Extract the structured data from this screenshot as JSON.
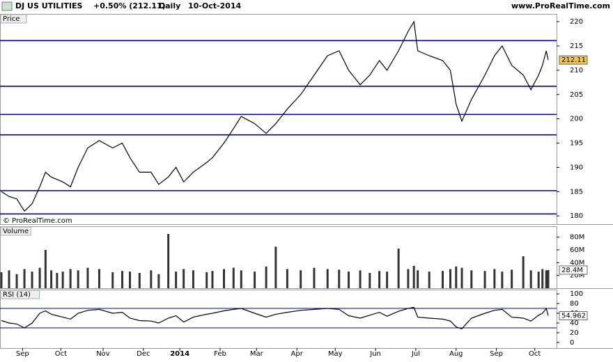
{
  "header": {
    "instrument": "DJ US UTILITIES",
    "change": "+0.50% (212.11)",
    "period": "Daily",
    "date": "10-Oct-2014",
    "source": "www.ProRealTime.com"
  },
  "chart_data": [
    {
      "type": "line",
      "title": "Price",
      "watermark": "© ProRealTime.com",
      "color": "#000000",
      "x": [
        0,
        4,
        8,
        12,
        16,
        20,
        23,
        26,
        29,
        32,
        36,
        40,
        45,
        51,
        58,
        63,
        67,
        72,
        78,
        82,
        87,
        91,
        95,
        100,
        107,
        110,
        116,
        121,
        125,
        132,
        138,
        143,
        149,
        156,
        163,
        170,
        176,
        181,
        187,
        192,
        197,
        201,
        207,
        212,
        215,
        217,
        223,
        230,
        234,
        237,
        240,
        245,
        252,
        257,
        261,
        266,
        272,
        276,
        280,
        282,
        284,
        285
      ],
      "values": [
        185,
        184,
        183.5,
        181,
        182.5,
        186,
        189,
        188,
        187.5,
        187,
        186,
        190,
        194,
        195.5,
        194,
        195,
        192,
        189,
        189,
        186.5,
        188,
        190,
        187,
        189,
        191,
        192,
        195,
        198,
        200.5,
        199,
        197,
        199,
        202,
        205,
        209,
        213,
        214,
        210,
        207,
        209,
        212,
        210,
        214,
        218,
        220,
        214,
        213,
        212,
        210,
        203,
        199.5,
        204,
        209,
        213,
        215,
        211,
        209,
        206,
        209,
        211,
        214,
        212.11
      ],
      "levels": [
        216.1,
        206.7,
        200.9,
        196.7,
        185.2,
        180.4
      ],
      "level_color": "#00008b",
      "last_value": 212.11,
      "xlim": [
        0,
        289
      ],
      "ylim": [
        178.3,
        221.6
      ],
      "yticks": [
        180,
        185,
        190,
        195,
        200,
        205,
        210,
        215,
        220
      ]
    },
    {
      "type": "bar",
      "title": "Volume",
      "color": "#333333",
      "x": [
        0,
        4,
        8,
        12,
        16,
        20,
        23,
        26,
        29,
        32,
        36,
        40,
        45,
        51,
        58,
        63,
        67,
        72,
        78,
        82,
        87,
        91,
        95,
        100,
        107,
        110,
        116,
        121,
        125,
        132,
        138,
        143,
        149,
        156,
        163,
        170,
        176,
        181,
        187,
        192,
        197,
        201,
        207,
        212,
        215,
        217,
        223,
        230,
        234,
        237,
        240,
        245,
        252,
        257,
        261,
        266,
        272,
        276,
        280,
        282,
        284,
        285
      ],
      "values": [
        25,
        28,
        22,
        30,
        26,
        32,
        60,
        28,
        24,
        26,
        30,
        28,
        32,
        30,
        25,
        27,
        26,
        24,
        28,
        22,
        85,
        26,
        30,
        28,
        25,
        27,
        30,
        32,
        28,
        26,
        34,
        65,
        30,
        28,
        32,
        30,
        29,
        26,
        28,
        24,
        27,
        26,
        62,
        30,
        35,
        28,
        26,
        27,
        30,
        34,
        32,
        28,
        27,
        30,
        26,
        29,
        50,
        28,
        26,
        30,
        28,
        28.4
      ],
      "last_value": {
        "value": 28.4,
        "label": "28.4M"
      },
      "xlim": [
        0,
        289
      ],
      "ylim": [
        0,
        97
      ],
      "yticks": [
        {
          "value": 20,
          "label": "20M"
        },
        {
          "value": 40,
          "label": "40M"
        },
        {
          "value": 60,
          "label": "60M"
        },
        {
          "value": 80,
          "label": "80M"
        }
      ]
    },
    {
      "type": "line",
      "title": "RSI (14)",
      "color": "#000000",
      "x": [
        0,
        4,
        8,
        12,
        16,
        20,
        23,
        26,
        29,
        32,
        36,
        40,
        45,
        51,
        58,
        63,
        67,
        72,
        78,
        82,
        87,
        91,
        95,
        100,
        107,
        110,
        116,
        121,
        125,
        132,
        138,
        143,
        149,
        156,
        163,
        170,
        176,
        181,
        187,
        192,
        197,
        201,
        207,
        212,
        215,
        217,
        223,
        230,
        234,
        237,
        240,
        245,
        252,
        257,
        261,
        266,
        272,
        276,
        280,
        282,
        284,
        285
      ],
      "values": [
        45,
        40,
        38,
        30,
        40,
        60,
        65,
        58,
        55,
        52,
        48,
        60,
        66,
        68,
        60,
        62,
        50,
        45,
        44,
        40,
        50,
        55,
        42,
        52,
        58,
        60,
        65,
        68,
        70,
        60,
        52,
        58,
        62,
        66,
        68,
        70,
        68,
        55,
        50,
        56,
        62,
        54,
        64,
        70,
        72,
        52,
        50,
        48,
        44,
        32,
        28,
        50,
        60,
        66,
        68,
        52,
        50,
        44,
        56,
        60,
        70,
        54.962
      ],
      "levels": [
        70,
        30
      ],
      "level_color": "#00008b",
      "last_value": 54.962,
      "xlim": [
        0,
        289
      ],
      "ylim": [
        -11.6,
        108.7
      ],
      "yticks": [
        0,
        20,
        40,
        60,
        80,
        100
      ],
      "xticks": [
        {
          "value": 11,
          "label": "Sep"
        },
        {
          "value": 31,
          "label": "Oct"
        },
        {
          "value": 53,
          "label": "Nov"
        },
        {
          "value": 74,
          "label": "Dec"
        },
        {
          "value": 93,
          "label": "2014"
        },
        {
          "value": 114,
          "label": "Feb"
        },
        {
          "value": 133,
          "label": "Mar"
        },
        {
          "value": 154,
          "label": "Apr"
        },
        {
          "value": 174,
          "label": "May"
        },
        {
          "value": 195,
          "label": "Jun"
        },
        {
          "value": 216,
          "label": "Jul"
        },
        {
          "value": 237,
          "label": "Aug"
        },
        {
          "value": 258,
          "label": "Sep"
        },
        {
          "value": 278,
          "label": "Oct"
        }
      ]
    }
  ]
}
